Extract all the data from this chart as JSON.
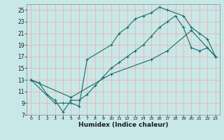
{
  "title": "",
  "xlabel": "Humidex (Indice chaleur)",
  "ylabel": "",
  "bg_color": "#c8e8e8",
  "grid_color": "#e8b8b8",
  "line_color": "#1a6b6b",
  "xlim": [
    -0.5,
    23.5
  ],
  "ylim": [
    7,
    26
  ],
  "xticks": [
    0,
    1,
    2,
    3,
    4,
    5,
    6,
    7,
    8,
    9,
    10,
    11,
    12,
    13,
    14,
    15,
    16,
    17,
    18,
    19,
    20,
    21,
    22,
    23
  ],
  "yticks": [
    7,
    9,
    11,
    13,
    15,
    17,
    19,
    21,
    23,
    25
  ],
  "line1_x": [
    0,
    1,
    2,
    3,
    4,
    5,
    6,
    7,
    8,
    9,
    10,
    11,
    12,
    13,
    14,
    15,
    16,
    17,
    18,
    19,
    20,
    21,
    22,
    23
  ],
  "line1_y": [
    13,
    12.5,
    10.5,
    9.5,
    7.5,
    9.5,
    9.5,
    10.5,
    12,
    13.5,
    15,
    16,
    17,
    18,
    19,
    20.5,
    22,
    23,
    24,
    22,
    18.5,
    18,
    18.5,
    17
  ],
  "line2_x": [
    0,
    3,
    4,
    5,
    6,
    7,
    10,
    11,
    12,
    13,
    14,
    15,
    16,
    17,
    19,
    20,
    21,
    22,
    23
  ],
  "line2_y": [
    13,
    9,
    9,
    9,
    8.5,
    16.5,
    19,
    21,
    22,
    23.5,
    24,
    24.5,
    25.5,
    25,
    24,
    22,
    21,
    20,
    17
  ],
  "line3_x": [
    0,
    5,
    10,
    15,
    17,
    20,
    23
  ],
  "line3_y": [
    13,
    10,
    14,
    16.5,
    18,
    21.5,
    17
  ]
}
